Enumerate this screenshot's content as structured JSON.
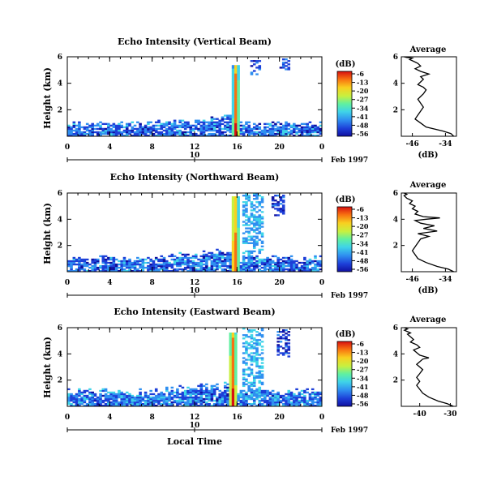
{
  "figure": {
    "xlabel": "Local Time",
    "date_label": "Feb 1997",
    "colorbar_unit": "(dB)",
    "colorbar_ticks": [
      -6,
      -13,
      -20,
      -27,
      -34,
      -41,
      -48,
      -56
    ],
    "colormap": [
      "#1010a0",
      "#1d3fd8",
      "#2f8ff0",
      "#3fd4e8",
      "#60f0a0",
      "#c8f040",
      "#f8d020",
      "#f87010",
      "#d81010"
    ]
  },
  "chart_data": [
    {
      "type": "heatmap",
      "title": "Echo Intensity (Vertical Beam)",
      "ylabel": "Height (km)",
      "x_ticks": [
        "0",
        "4",
        "8",
        "12",
        "16",
        "20",
        "0"
      ],
      "secondary_x_tick": "10",
      "y_ticks": [
        "2",
        "4",
        "6"
      ],
      "xlim": [
        0,
        24
      ],
      "ylim": [
        0,
        6
      ],
      "value_range": [
        -56,
        -6
      ],
      "features": {
        "surface_layer": {
          "top_km": 1.1,
          "value_db": -45
        },
        "plume": {
          "start_hr": 15.6,
          "end_hr": 16.2,
          "top_km": 5.4,
          "core_db": -8
        },
        "upper_echo": [
          {
            "x0": 17.2,
            "x1": 18.2,
            "y0": 4.6,
            "y1": 5.8,
            "value_db": -46
          },
          {
            "x0": 20.0,
            "x1": 21.0,
            "y0": 5.0,
            "y1": 5.9,
            "value_db": -48
          }
        ]
      }
    },
    {
      "type": "heatmap",
      "title": "Echo Intensity (Northward Beam)",
      "ylabel": "Height (km)",
      "x_ticks": [
        "0",
        "4",
        "8",
        "12",
        "16",
        "20",
        "0"
      ],
      "secondary_x_tick": "10",
      "y_ticks": [
        "2",
        "4",
        "6"
      ],
      "xlim": [
        0,
        24
      ],
      "ylim": [
        0,
        6
      ],
      "value_range": [
        -56,
        -6
      ],
      "features": {
        "surface_layer": {
          "top_km": 1.2,
          "value_db": -45
        },
        "plume": {
          "start_hr": 15.4,
          "end_hr": 16.2,
          "top_km": 5.7,
          "core_db": -8
        },
        "upper_echo": [
          {
            "x0": 16.5,
            "x1": 18.6,
            "y0": 0.6,
            "y1": 6.0,
            "value_db": -40
          },
          {
            "x0": 19.2,
            "x1": 20.6,
            "y0": 4.2,
            "y1": 5.9,
            "value_db": -48
          }
        ]
      }
    },
    {
      "type": "heatmap",
      "title": "Echo Intensity (Eastward Beam)",
      "ylabel": "Height (km)",
      "x_ticks": [
        "0",
        "4",
        "8",
        "12",
        "16",
        "20",
        "0"
      ],
      "secondary_x_tick": "10",
      "y_ticks": [
        "2",
        "4",
        "6"
      ],
      "xlim": [
        0,
        24
      ],
      "ylim": [
        0,
        6
      ],
      "value_range": [
        -56,
        -6
      ],
      "features": {
        "surface_layer": {
          "top_km": 1.3,
          "value_db": -44
        },
        "plume": {
          "start_hr": 15.2,
          "end_hr": 16.0,
          "top_km": 5.6,
          "core_db": -8
        },
        "upper_echo": [
          {
            "x0": 16.4,
            "x1": 18.4,
            "y0": 0.5,
            "y1": 6.0,
            "value_db": -40
          },
          {
            "x0": 19.8,
            "x1": 21.0,
            "y0": 3.8,
            "y1": 5.9,
            "value_db": -48
          }
        ]
      }
    },
    {
      "type": "line",
      "title": "Average",
      "xlabel": "(dB)",
      "x_ticks": [
        "-46",
        "-34"
      ],
      "y_ticks": [
        "2",
        "4",
        "6"
      ],
      "xlim": [
        -50,
        -30
      ],
      "ylim": [
        0,
        6
      ],
      "x": [
        -31,
        -32,
        -35,
        -41,
        -43,
        -45,
        -44,
        -43,
        -42,
        -43,
        -44,
        -43,
        -42,
        -41,
        -42,
        -44,
        -43,
        -42,
        -43,
        -40,
        -43,
        -45,
        -43,
        -44,
        -45,
        -46,
        -47,
        -46,
        -48,
        -49
      ],
      "y": [
        0.0,
        0.2,
        0.4,
        0.7,
        1.0,
        1.3,
        1.6,
        1.9,
        2.2,
        2.5,
        2.8,
        3.0,
        3.2,
        3.5,
        3.7,
        3.9,
        4.1,
        4.3,
        4.5,
        4.7,
        4.9,
        5.1,
        5.3,
        5.5,
        5.6,
        5.7,
        5.8,
        5.9,
        5.95,
        6.0
      ]
    },
    {
      "type": "line",
      "title": "Average",
      "xlabel": "(dB)",
      "x_ticks": [
        "-46",
        "-34"
      ],
      "y_ticks": [
        "2",
        "4",
        "6"
      ],
      "xlim": [
        -50,
        -30
      ],
      "ylim": [
        0,
        6
      ],
      "x": [
        -31,
        -33,
        -37,
        -41,
        -44,
        -45,
        -46,
        -45,
        -44,
        -43,
        -40,
        -44,
        -37,
        -42,
        -38,
        -43,
        -45,
        -41,
        -36,
        -42,
        -45,
        -44,
        -46,
        -45,
        -47,
        -46,
        -48,
        -49,
        -48,
        -49
      ],
      "y": [
        0.0,
        0.2,
        0.4,
        0.7,
        1.0,
        1.3,
        1.6,
        1.9,
        2.2,
        2.5,
        2.7,
        2.9,
        3.1,
        3.3,
        3.5,
        3.7,
        3.9,
        4.0,
        4.1,
        4.2,
        4.4,
        4.6,
        4.8,
        5.0,
        5.2,
        5.4,
        5.6,
        5.8,
        5.9,
        6.0
      ]
    },
    {
      "type": "line",
      "title": "Average",
      "xlabel": "(dB)",
      "x_ticks": [
        "-40",
        "-30"
      ],
      "y_ticks": [
        "2",
        "4",
        "6"
      ],
      "xlim": [
        -46,
        -28
      ],
      "ylim": [
        0,
        6
      ],
      "x": [
        -29,
        -31,
        -34,
        -37,
        -39,
        -40,
        -41,
        -40,
        -41,
        -40,
        -39,
        -40,
        -41,
        -40,
        -39,
        -37,
        -40,
        -41,
        -42,
        -40,
        -41,
        -43,
        -42,
        -43,
        -44,
        -43,
        -44,
        -45,
        -44,
        -45
      ],
      "y": [
        0.0,
        0.2,
        0.4,
        0.7,
        1.0,
        1.3,
        1.6,
        1.9,
        2.2,
        2.5,
        2.8,
        3.0,
        3.2,
        3.4,
        3.6,
        3.7,
        3.9,
        4.1,
        4.3,
        4.5,
        4.7,
        4.9,
        5.1,
        5.3,
        5.5,
        5.6,
        5.7,
        5.8,
        5.9,
        6.0
      ]
    }
  ]
}
